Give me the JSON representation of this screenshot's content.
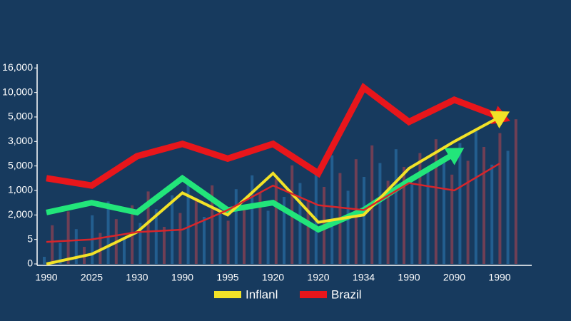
{
  "chart_data": {
    "type": "line",
    "categories": [
      "1990",
      "2025",
      "1930",
      "1990",
      "1995",
      "1920",
      "1920",
      "1934",
      "1990",
      "2090",
      "1990"
    ],
    "ylim": [
      0,
      8.3
    ],
    "yticks": [
      {
        "value": 0,
        "label": "0"
      },
      {
        "value": 1,
        "label": "5"
      },
      {
        "value": 2,
        "label": "2,000"
      },
      {
        "value": 3,
        "label": "1,000"
      },
      {
        "value": 4,
        "label": "5,000"
      },
      {
        "value": 5,
        "label": "3,000"
      },
      {
        "value": 6,
        "label": "5,000"
      },
      {
        "value": 7,
        "label": "10,000"
      },
      {
        "value": 8,
        "label": "16,000"
      }
    ],
    "series": [
      {
        "name": "Brazil",
        "color": "#e8161b",
        "values": [
          3.5,
          3.2,
          4.4,
          4.9,
          4.3,
          4.9,
          3.7,
          7.2,
          5.8,
          6.7,
          6.0
        ]
      },
      {
        "color": "#22e57a",
        "values": [
          2.1,
          2.5,
          2.1,
          3.5,
          2.2,
          2.5,
          1.4,
          2.2,
          3.4,
          4.5,
          null
        ]
      },
      {
        "name": "Inflanl",
        "color": "#f2e227",
        "values": [
          0,
          0.4,
          1.3,
          2.9,
          2.0,
          3.7,
          1.7,
          2.0,
          3.9,
          5.0,
          6.0
        ]
      },
      {
        "color": "#d8252a",
        "values": [
          0.9,
          1.0,
          1.3,
          1.4,
          2.2,
          3.2,
          2.4,
          2.2,
          3.3,
          3.0,
          4.1
        ]
      }
    ],
    "legend": "bottom"
  }
}
